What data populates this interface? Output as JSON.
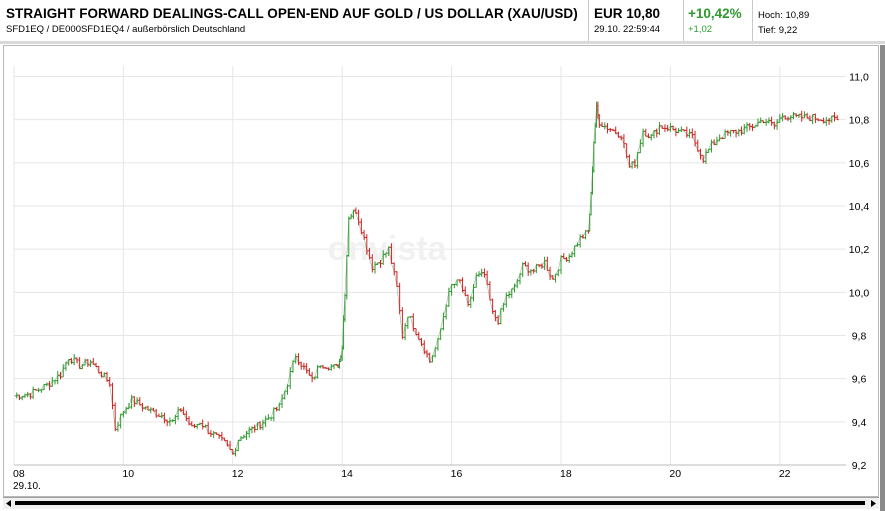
{
  "header": {
    "title": "STRAIGHT FORWARD DEALINGS-CALL OPEN-END AUF GOLD / US DOLLAR (XAU/USD)",
    "subtitle": "SFD1EQ / DE000SFD1EQ4 / außerbörslich Deutschland",
    "price": "EUR 10,80",
    "timestamp": "29.10. 22:59:44",
    "change_pct": "+10,42%",
    "change_abs": "+1,02",
    "high": "Hoch: 10,89",
    "low": "Tief: 9,22"
  },
  "watermark": "onvista",
  "colors": {
    "up": "#2e9a2e",
    "down": "#d42020",
    "grid": "#e6e6e6"
  },
  "chart_data": {
    "type": "line",
    "style": "ohlc-bars",
    "x_ticks": [
      "08",
      "10",
      "12",
      "14",
      "16",
      "18",
      "20",
      "22"
    ],
    "x_tick_values": [
      8,
      10,
      12,
      14,
      16,
      18,
      20,
      22
    ],
    "x_sublabel": "29.10.",
    "y_ticks": [
      "11,0",
      "10,8",
      "10,6",
      "10,4",
      "10,2",
      "10,0",
      "9,8",
      "9,6",
      "9,4",
      "9,2"
    ],
    "y_tick_values": [
      11.0,
      10.8,
      10.6,
      10.4,
      10.2,
      10.0,
      9.8,
      9.6,
      9.4,
      9.2
    ],
    "xlim": [
      8,
      23.1
    ],
    "ylim": [
      9.2,
      11.03
    ],
    "grid": true,
    "series": [
      {
        "x": [
          8.0,
          8.3,
          8.6,
          8.85,
          9.0,
          9.2,
          9.4,
          9.6,
          9.75,
          9.85,
          10.0,
          10.15,
          10.3,
          10.5,
          10.7,
          10.9,
          11.05,
          11.25,
          11.4,
          11.55,
          11.7,
          11.85,
          12.0,
          12.1,
          12.25,
          12.45,
          12.65,
          12.85,
          13.0,
          13.15,
          13.3,
          13.45,
          13.6,
          13.75,
          13.9,
          13.95,
          14.0,
          14.05,
          14.12,
          14.25,
          14.4,
          14.55,
          14.7,
          14.85,
          15.0,
          15.1,
          15.2,
          15.35,
          15.5,
          15.6,
          15.75,
          15.9,
          16.0,
          16.15,
          16.3,
          16.45,
          16.6,
          16.75,
          16.85,
          17.0,
          17.15,
          17.3,
          17.5,
          17.7,
          17.85,
          18.0,
          18.15,
          18.35,
          18.5,
          18.55,
          18.6,
          18.65,
          18.7,
          18.8,
          18.95,
          19.1,
          19.25,
          19.35,
          19.5,
          19.65,
          19.8,
          20.0,
          20.2,
          20.4,
          20.6,
          20.75,
          20.9,
          21.1,
          21.3,
          21.5,
          21.7,
          21.9,
          22.05,
          22.3,
          22.6,
          22.9,
          23.05
        ],
        "y": [
          9.52,
          9.53,
          9.57,
          9.62,
          9.7,
          9.66,
          9.68,
          9.62,
          9.58,
          9.37,
          9.45,
          9.5,
          9.48,
          9.45,
          9.43,
          9.4,
          9.46,
          9.37,
          9.4,
          9.36,
          9.33,
          9.3,
          9.25,
          9.32,
          9.35,
          9.38,
          9.42,
          9.47,
          9.58,
          9.71,
          9.65,
          9.59,
          9.67,
          9.66,
          9.65,
          9.68,
          9.75,
          10.0,
          10.35,
          10.38,
          10.25,
          10.12,
          10.15,
          10.2,
          10.02,
          9.8,
          9.9,
          9.82,
          9.74,
          9.68,
          9.77,
          9.95,
          10.03,
          10.05,
          9.93,
          10.07,
          10.08,
          9.9,
          9.87,
          9.98,
          10.02,
          10.12,
          10.1,
          10.14,
          10.06,
          10.15,
          10.17,
          10.25,
          10.28,
          10.45,
          10.7,
          10.85,
          10.79,
          10.77,
          10.75,
          10.73,
          10.58,
          10.6,
          10.75,
          10.72,
          10.77,
          10.76,
          10.74,
          10.72,
          10.62,
          10.68,
          10.72,
          10.74,
          10.75,
          10.77,
          10.8,
          10.77,
          10.82,
          10.81,
          10.81,
          10.8,
          10.8
        ]
      }
    ]
  }
}
